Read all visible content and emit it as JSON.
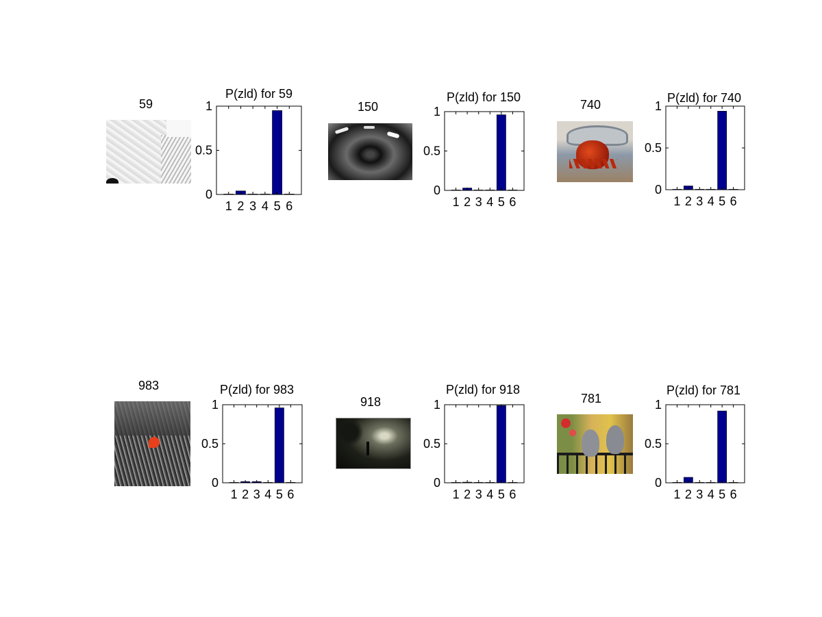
{
  "colors": {
    "bar": "#00008f",
    "axis": "#000000"
  },
  "images": [
    {
      "caption": "59",
      "icon": "crumpled-paper-photo"
    },
    {
      "caption": "150",
      "icon": "tunnel-photo"
    },
    {
      "caption": "740",
      "icon": "hermit-crab-photo"
    },
    {
      "caption": "983",
      "icon": "wheat-field-poppy-photo"
    },
    {
      "caption": "918",
      "icon": "dark-night-scene-photo"
    },
    {
      "caption": "781",
      "icon": "doves-on-railing-photo"
    }
  ],
  "chart_data": [
    {
      "type": "bar",
      "title": "P(zld) for 59",
      "categories": [
        "1",
        "2",
        "3",
        "4",
        "5",
        "6"
      ],
      "values": [
        0.005,
        0.04,
        0.005,
        0.005,
        0.95,
        0.005
      ],
      "ylim": [
        0,
        1
      ],
      "yticks": [
        "0",
        "0.5",
        "1"
      ],
      "xlabel": "",
      "ylabel": "",
      "grid": false
    },
    {
      "type": "bar",
      "title": "P(zld) for 150",
      "categories": [
        "1",
        "2",
        "3",
        "4",
        "5",
        "6"
      ],
      "values": [
        0.005,
        0.03,
        0.005,
        0.005,
        0.96,
        0.005
      ],
      "ylim": [
        0,
        1
      ],
      "yticks": [
        "0",
        "0.5",
        "1"
      ],
      "xlabel": "",
      "ylabel": "",
      "grid": false
    },
    {
      "type": "bar",
      "title": "P(zld) for 740",
      "categories": [
        "1",
        "2",
        "3",
        "4",
        "5",
        "6"
      ],
      "values": [
        0.005,
        0.045,
        0.005,
        0.005,
        0.94,
        0.005
      ],
      "ylim": [
        0,
        1
      ],
      "yticks": [
        "0",
        "0.5",
        "1"
      ],
      "xlabel": "",
      "ylabel": "",
      "grid": false
    },
    {
      "type": "bar",
      "title": "P(zld) for 983",
      "categories": [
        "1",
        "2",
        "3",
        "4",
        "5",
        "6"
      ],
      "values": [
        0.005,
        0.015,
        0.015,
        0.005,
        0.96,
        0.005
      ],
      "ylim": [
        0,
        1
      ],
      "yticks": [
        "0",
        "0.5",
        "1"
      ],
      "xlabel": "",
      "ylabel": "",
      "grid": false
    },
    {
      "type": "bar",
      "title": "P(zld) for 918",
      "categories": [
        "1",
        "2",
        "3",
        "4",
        "5",
        "6"
      ],
      "values": [
        0.005,
        0.008,
        0.005,
        0.005,
        0.99,
        0.005
      ],
      "ylim": [
        0,
        1
      ],
      "yticks": [
        "0",
        "0.5",
        "1"
      ],
      "xlabel": "",
      "ylabel": "",
      "grid": false
    },
    {
      "type": "bar",
      "title": "P(zld) for 781",
      "categories": [
        "1",
        "2",
        "3",
        "4",
        "5",
        "6"
      ],
      "values": [
        0.005,
        0.07,
        0.005,
        0.005,
        0.92,
        0.005
      ],
      "ylim": [
        0,
        1
      ],
      "yticks": [
        "0",
        "0.5",
        "1"
      ],
      "xlabel": "",
      "ylabel": "",
      "grid": false
    }
  ]
}
